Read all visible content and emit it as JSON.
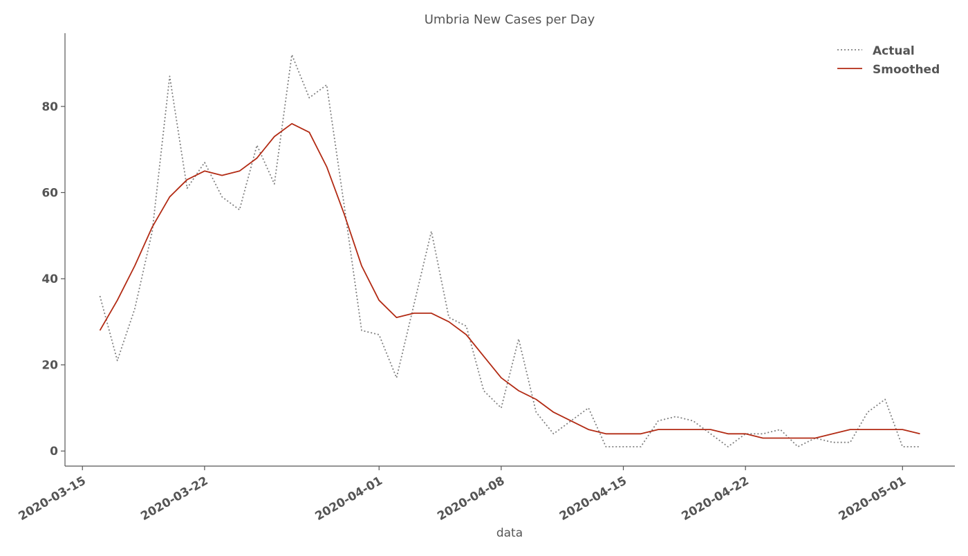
{
  "chart_data": {
    "type": "line",
    "title": "Umbria New Cases per Day",
    "xlabel": "data",
    "ylabel": "",
    "ylim": [
      -3.5,
      97
    ],
    "xlim": [
      "2020-03-14",
      "2020-05-04"
    ],
    "grid": false,
    "legend_position": "top-right",
    "y_ticks": [
      0,
      20,
      40,
      60,
      80
    ],
    "x_ticks": [
      "2020-03-15",
      "2020-03-22",
      "2020-04-01",
      "2020-04-08",
      "2020-04-15",
      "2020-04-22",
      "2020-05-01"
    ],
    "x": [
      "2020-03-16",
      "2020-03-17",
      "2020-03-18",
      "2020-03-19",
      "2020-03-20",
      "2020-03-21",
      "2020-03-22",
      "2020-03-23",
      "2020-03-24",
      "2020-03-25",
      "2020-03-26",
      "2020-03-27",
      "2020-03-28",
      "2020-03-29",
      "2020-03-30",
      "2020-03-31",
      "2020-04-01",
      "2020-04-02",
      "2020-04-03",
      "2020-04-04",
      "2020-04-05",
      "2020-04-06",
      "2020-04-07",
      "2020-04-08",
      "2020-04-09",
      "2020-04-10",
      "2020-04-11",
      "2020-04-12",
      "2020-04-13",
      "2020-04-14",
      "2020-04-15",
      "2020-04-16",
      "2020-04-17",
      "2020-04-18",
      "2020-04-19",
      "2020-04-20",
      "2020-04-21",
      "2020-04-22",
      "2020-04-23",
      "2020-04-24",
      "2020-04-25",
      "2020-04-26",
      "2020-04-27",
      "2020-04-28",
      "2020-04-29",
      "2020-04-30",
      "2020-05-01",
      "2020-05-02"
    ],
    "series": [
      {
        "name": "Actual",
        "color": "#808080",
        "style": "dotted",
        "values": [
          36,
          21,
          33,
          51,
          87,
          61,
          67,
          59,
          56,
          71,
          62,
          92,
          82,
          85,
          57,
          28,
          27,
          17,
          34,
          51,
          31,
          29,
          14,
          10,
          26,
          9,
          4,
          7,
          10,
          1,
          1,
          1,
          7,
          8,
          7,
          4,
          1,
          4,
          4,
          5,
          1,
          3,
          2,
          2,
          9,
          12,
          1,
          1
        ]
      },
      {
        "name": "Smoothed",
        "color": "#b22a13",
        "style": "solid",
        "values": [
          28,
          35,
          43,
          52,
          59,
          63,
          65,
          64,
          65,
          68,
          73,
          76,
          74,
          66,
          55,
          43,
          35,
          31,
          32,
          32,
          30,
          27,
          22,
          17,
          14,
          12,
          9,
          7,
          5,
          4,
          4,
          4,
          5,
          5,
          5,
          5,
          4,
          4,
          3,
          3,
          3,
          3,
          4,
          5,
          5,
          5,
          5,
          4
        ]
      }
    ]
  }
}
